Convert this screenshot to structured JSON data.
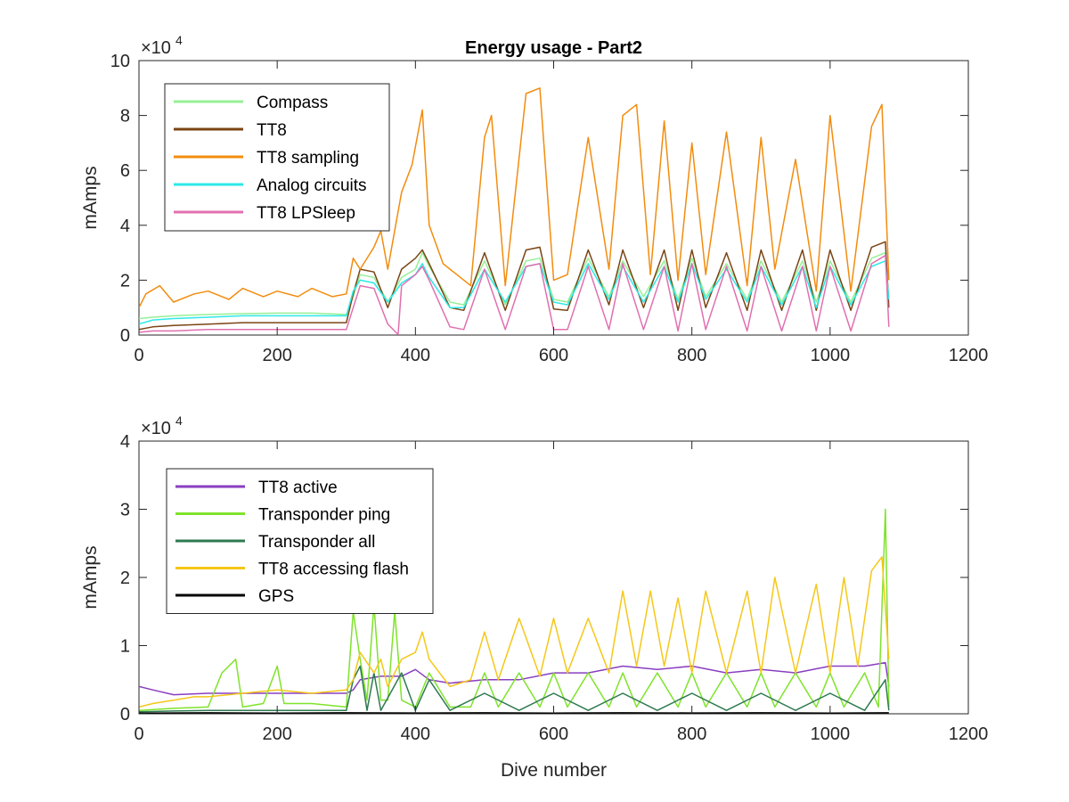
{
  "figure": {
    "title": "Energy usage - Part2",
    "xlabel": "Dive number"
  },
  "chart_data": [
    {
      "type": "line",
      "title": "Energy usage - Part2",
      "xlabel": "",
      "ylabel": "mAmps",
      "exponent_label": "×10",
      "exponent_power": "4",
      "xlim": [
        0,
        1200
      ],
      "ylim": [
        0,
        100000
      ],
      "xticks": [
        "0",
        "200",
        "400",
        "600",
        "800",
        "1000",
        "1200"
      ],
      "yticks": [
        "0",
        "2",
        "4",
        "6",
        "8",
        "10"
      ],
      "grid": false,
      "legend_position": "top-left",
      "series": [
        {
          "name": "Compass",
          "color": "#96f096",
          "x": [
            0,
            20,
            50,
            100,
            150,
            200,
            250,
            300,
            310,
            320,
            340,
            360,
            380,
            400,
            410,
            420,
            450,
            470,
            500,
            530,
            560,
            580,
            600,
            620,
            650,
            680,
            700,
            730,
            760,
            780,
            800,
            820,
            850,
            880,
            900,
            930,
            960,
            980,
            1000,
            1030,
            1060,
            1080,
            1085
          ],
          "y": [
            6000,
            6500,
            7000,
            7500,
            7800,
            8000,
            8000,
            7500,
            14000,
            22000,
            21000,
            12000,
            21000,
            24000,
            30000,
            25000,
            12000,
            11000,
            27000,
            11000,
            27000,
            28000,
            13000,
            12000,
            28000,
            14000,
            27000,
            14000,
            27000,
            13000,
            28000,
            14000,
            26000,
            13000,
            27000,
            12000,
            27000,
            12000,
            27000,
            12000,
            28000,
            30000,
            13000
          ]
        },
        {
          "name": "TT8",
          "color": "#7a4414",
          "x": [
            0,
            20,
            50,
            100,
            150,
            200,
            250,
            300,
            310,
            320,
            340,
            360,
            380,
            400,
            410,
            420,
            450,
            470,
            500,
            530,
            560,
            580,
            600,
            620,
            650,
            680,
            700,
            730,
            760,
            780,
            800,
            820,
            850,
            880,
            900,
            930,
            960,
            980,
            1000,
            1030,
            1060,
            1080,
            1085
          ],
          "y": [
            2000,
            3000,
            3500,
            4000,
            4500,
            4500,
            4500,
            4500,
            15000,
            24000,
            23000,
            10000,
            24000,
            28000,
            31000,
            26000,
            10000,
            9000,
            30000,
            9000,
            31000,
            32000,
            9500,
            9000,
            31000,
            11000,
            31000,
            10000,
            31000,
            9000,
            31000,
            10000,
            30000,
            9000,
            31000,
            9000,
            31000,
            9000,
            31000,
            9000,
            32000,
            34000,
            10000
          ]
        },
        {
          "name": "TT8 sampling",
          "color": "#f28c0f",
          "x": [
            0,
            10,
            30,
            50,
            80,
            100,
            130,
            150,
            180,
            200,
            230,
            250,
            280,
            300,
            310,
            320,
            340,
            350,
            360,
            380,
            395,
            410,
            420,
            440,
            460,
            480,
            500,
            510,
            530,
            560,
            580,
            600,
            620,
            650,
            680,
            700,
            720,
            740,
            760,
            780,
            800,
            820,
            850,
            880,
            900,
            920,
            950,
            980,
            1000,
            1030,
            1060,
            1075,
            1085
          ],
          "y": [
            10000,
            15000,
            18000,
            12000,
            15000,
            16000,
            13000,
            17000,
            14000,
            16000,
            14000,
            17000,
            14000,
            15000,
            28000,
            24000,
            32000,
            38000,
            24000,
            52000,
            62000,
            82000,
            40000,
            26000,
            22000,
            18000,
            72000,
            80000,
            18000,
            88000,
            90000,
            20000,
            22000,
            72000,
            24000,
            80000,
            84000,
            22000,
            78000,
            20000,
            70000,
            22000,
            74000,
            18000,
            72000,
            24000,
            64000,
            16000,
            80000,
            16000,
            76000,
            84000,
            20000
          ]
        },
        {
          "name": "Analog circuits",
          "color": "#2ee8e8",
          "x": [
            0,
            20,
            50,
            100,
            150,
            200,
            250,
            300,
            310,
            320,
            340,
            360,
            380,
            400,
            410,
            420,
            450,
            470,
            500,
            530,
            560,
            580,
            600,
            620,
            650,
            680,
            700,
            730,
            760,
            780,
            800,
            820,
            850,
            880,
            900,
            930,
            960,
            980,
            1000,
            1030,
            1060,
            1080,
            1085
          ],
          "y": [
            4000,
            5500,
            6000,
            6500,
            7000,
            7000,
            7000,
            7000,
            16000,
            20000,
            19000,
            12000,
            19000,
            22000,
            26000,
            21000,
            10000,
            10000,
            24000,
            12000,
            25000,
            26000,
            12000,
            11000,
            26000,
            13000,
            25000,
            12000,
            25000,
            12000,
            26000,
            13000,
            24000,
            12000,
            25000,
            11000,
            25000,
            10000,
            25000,
            11000,
            25000,
            27000,
            13000
          ]
        },
        {
          "name": "TT8 LPSleep",
          "color": "#e070b0",
          "x": [
            0,
            20,
            50,
            100,
            150,
            200,
            250,
            300,
            310,
            320,
            340,
            360,
            375,
            380,
            400,
            410,
            420,
            450,
            470,
            500,
            530,
            560,
            580,
            600,
            620,
            650,
            680,
            700,
            730,
            760,
            780,
            800,
            820,
            850,
            880,
            900,
            930,
            960,
            980,
            1000,
            1030,
            1060,
            1080,
            1085
          ],
          "y": [
            1000,
            1500,
            1500,
            2000,
            2000,
            2000,
            2000,
            2000,
            10000,
            18000,
            17000,
            4000,
            200,
            18000,
            22000,
            25000,
            20000,
            3000,
            2000,
            24000,
            2000,
            25000,
            26000,
            2000,
            2000,
            25000,
            2000,
            26000,
            2000,
            25000,
            1500,
            26000,
            2000,
            25000,
            1500,
            25000,
            1500,
            25000,
            1500,
            25000,
            1500,
            26000,
            29000,
            3000
          ]
        }
      ]
    },
    {
      "type": "line",
      "title": "",
      "xlabel": "Dive number",
      "ylabel": "mAmps",
      "exponent_label": "×10",
      "exponent_power": "4",
      "xlim": [
        0,
        1200
      ],
      "ylim": [
        0,
        40000
      ],
      "xticks": [
        "0",
        "200",
        "400",
        "600",
        "800",
        "1000",
        "1200"
      ],
      "yticks": [
        "0",
        "1",
        "2",
        "3",
        "4"
      ],
      "grid": false,
      "legend_position": "top-left",
      "series": [
        {
          "name": "TT8 active",
          "color": "#8a3fc0",
          "x": [
            0,
            20,
            50,
            100,
            150,
            200,
            250,
            300,
            310,
            320,
            350,
            380,
            400,
            420,
            450,
            500,
            550,
            600,
            650,
            700,
            750,
            800,
            850,
            900,
            950,
            1000,
            1050,
            1080,
            1085
          ],
          "y": [
            4000,
            3500,
            2800,
            3000,
            3000,
            3000,
            3000,
            3000,
            3500,
            5000,
            5500,
            5500,
            6500,
            5000,
            4500,
            5000,
            5000,
            6000,
            6000,
            7000,
            6500,
            7000,
            6000,
            6500,
            6000,
            7000,
            7000,
            7500,
            4000
          ]
        },
        {
          "name": "Transponder ping",
          "color": "#7fe32a",
          "x": [
            0,
            50,
            100,
            120,
            140,
            150,
            180,
            200,
            210,
            220,
            250,
            300,
            310,
            320,
            330,
            340,
            350,
            360,
            370,
            380,
            400,
            420,
            450,
            480,
            500,
            520,
            550,
            580,
            600,
            620,
            650,
            680,
            700,
            720,
            750,
            780,
            800,
            820,
            850,
            880,
            900,
            920,
            950,
            980,
            1000,
            1020,
            1050,
            1070,
            1080,
            1085
          ],
          "y": [
            500,
            800,
            1000,
            6000,
            8000,
            1000,
            1500,
            7000,
            1500,
            1500,
            1500,
            1000,
            15000,
            8000,
            2000,
            16000,
            2000,
            2000,
            15000,
            2000,
            1000,
            6000,
            1000,
            1000,
            6000,
            1000,
            6000,
            1000,
            6000,
            1000,
            6000,
            1000,
            6000,
            1000,
            6000,
            1000,
            6000,
            1000,
            6000,
            1000,
            6000,
            1000,
            6000,
            1000,
            6000,
            1000,
            6000,
            1000,
            30000,
            1000
          ]
        },
        {
          "name": "Transponder all",
          "color": "#2e7a50",
          "x": [
            0,
            50,
            100,
            150,
            200,
            250,
            300,
            310,
            320,
            330,
            340,
            350,
            380,
            400,
            420,
            450,
            500,
            550,
            600,
            650,
            700,
            750,
            800,
            850,
            900,
            950,
            1000,
            1050,
            1080,
            1085
          ],
          "y": [
            300,
            400,
            500,
            500,
            500,
            500,
            500,
            5000,
            7000,
            500,
            6000,
            500,
            6000,
            500,
            5000,
            500,
            3000,
            500,
            3000,
            500,
            3000,
            500,
            3000,
            500,
            3000,
            500,
            3000,
            500,
            5000,
            500
          ]
        },
        {
          "name": "TT8 accessing flash",
          "color": "#f5c718",
          "x": [
            0,
            20,
            50,
            80,
            100,
            150,
            200,
            250,
            300,
            310,
            320,
            340,
            350,
            360,
            380,
            400,
            410,
            420,
            450,
            480,
            500,
            520,
            550,
            580,
            600,
            620,
            650,
            680,
            700,
            720,
            740,
            760,
            780,
            800,
            820,
            850,
            880,
            900,
            920,
            950,
            980,
            1000,
            1020,
            1040,
            1060,
            1075,
            1085
          ],
          "y": [
            1000,
            1500,
            2000,
            2500,
            2500,
            3000,
            3500,
            3000,
            3500,
            5000,
            9000,
            6000,
            8000,
            4000,
            8000,
            9000,
            12000,
            8000,
            4000,
            5000,
            12000,
            5000,
            14000,
            5500,
            14000,
            6000,
            14000,
            6000,
            18000,
            7000,
            18000,
            7000,
            17000,
            6000,
            18000,
            6000,
            18000,
            6000,
            20000,
            6000,
            19000,
            6000,
            20000,
            7000,
            21000,
            23000,
            8000
          ]
        },
        {
          "name": "GPS",
          "color": "#000000",
          "x": [
            0,
            100,
            200,
            300,
            400,
            500,
            600,
            700,
            800,
            900,
            1000,
            1085
          ],
          "y": [
            100,
            150,
            100,
            150,
            120,
            150,
            100,
            150,
            120,
            150,
            100,
            150
          ]
        }
      ]
    }
  ]
}
